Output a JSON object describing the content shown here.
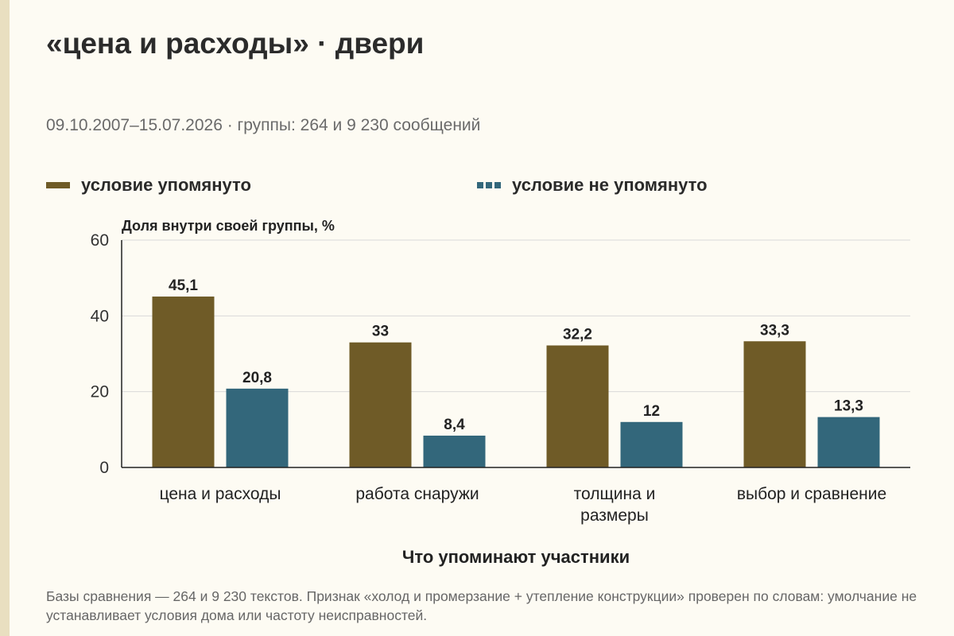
{
  "title": "«цена и расходы» · двери",
  "subtitle": "09.10.2007–15.07.2026 · группы: 264 и 9 230 сообщений",
  "note": "Базы сравнения — 264 и 9 230 текстов. Признак «холод и промерзание + утепление конструкции» проверен по словам: умолчание не устанавливает условия дома или частоту неисправностей.",
  "colors": {
    "mentioned": "#6f5b27",
    "not_mentioned": "#33677b",
    "grid": "#d9d9d9",
    "axis": "#222222"
  },
  "chart_data": {
    "type": "bar",
    "xlabel": "Что упоминают участники",
    "ylabel": "Доля внутри своей группы, %",
    "ylim": [
      0,
      60
    ],
    "yticks": [
      0,
      20,
      40,
      60
    ],
    "grid": true,
    "legend_position": "top",
    "categories": [
      [
        "цена и расходы"
      ],
      [
        "работа снаружи"
      ],
      [
        "толщина и",
        "размеры"
      ],
      [
        "выбор и сравнение"
      ]
    ],
    "series": [
      {
        "name": "условие упомянуто",
        "values": [
          45.1,
          33,
          32.2,
          33.3
        ],
        "labels": [
          "45,1",
          "33",
          "32,2",
          "33,3"
        ]
      },
      {
        "name": "условие не упомянуто",
        "values": [
          20.8,
          8.4,
          12,
          13.3
        ],
        "labels": [
          "20,8",
          "8,4",
          "12",
          "13,3"
        ]
      }
    ]
  }
}
